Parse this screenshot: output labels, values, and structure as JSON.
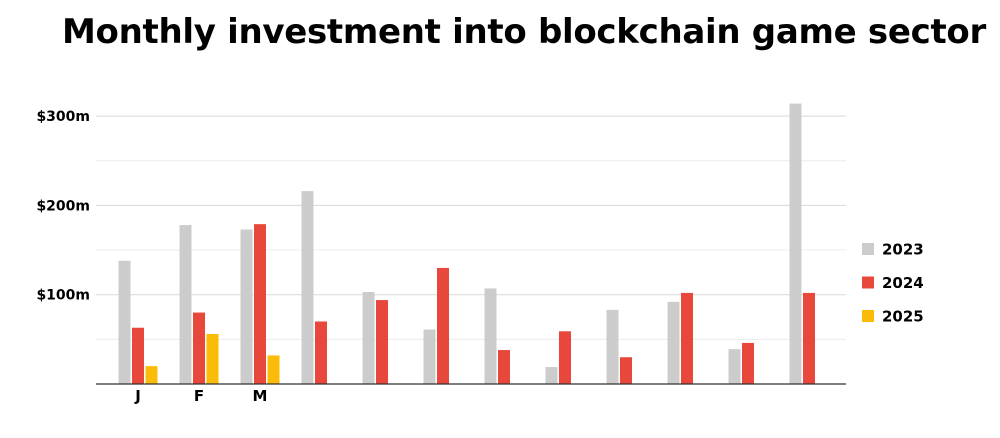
{
  "chart_data": {
    "type": "bar",
    "title": "Monthly investment into blockchain game sector",
    "xlabel": "",
    "ylabel": "",
    "categories": [
      "J",
      "F",
      "M",
      "",
      "",
      "",
      "",
      "",
      "",
      "",
      "",
      ""
    ],
    "series": [
      {
        "name": "2023",
        "color": "#cccccc",
        "values": [
          138,
          178,
          173,
          216,
          103,
          61,
          107,
          19,
          83,
          92,
          39,
          314
        ]
      },
      {
        "name": "2024",
        "color": "#e8473b",
        "values": [
          63,
          80,
          179,
          70,
          94,
          130,
          38,
          59,
          30,
          102,
          46,
          102
        ]
      },
      {
        "name": "2025",
        "color": "#fbbc09",
        "values": [
          20,
          56,
          32,
          null,
          null,
          null,
          null,
          null,
          null,
          null,
          null,
          null
        ]
      }
    ],
    "ylim": [
      0,
      320
    ],
    "yticks": [
      {
        "value": 100,
        "label": "$100m"
      },
      {
        "value": 200,
        "label": "$200m"
      },
      {
        "value": 300,
        "label": "$300m"
      }
    ],
    "grid": true,
    "legend_position": "right"
  }
}
